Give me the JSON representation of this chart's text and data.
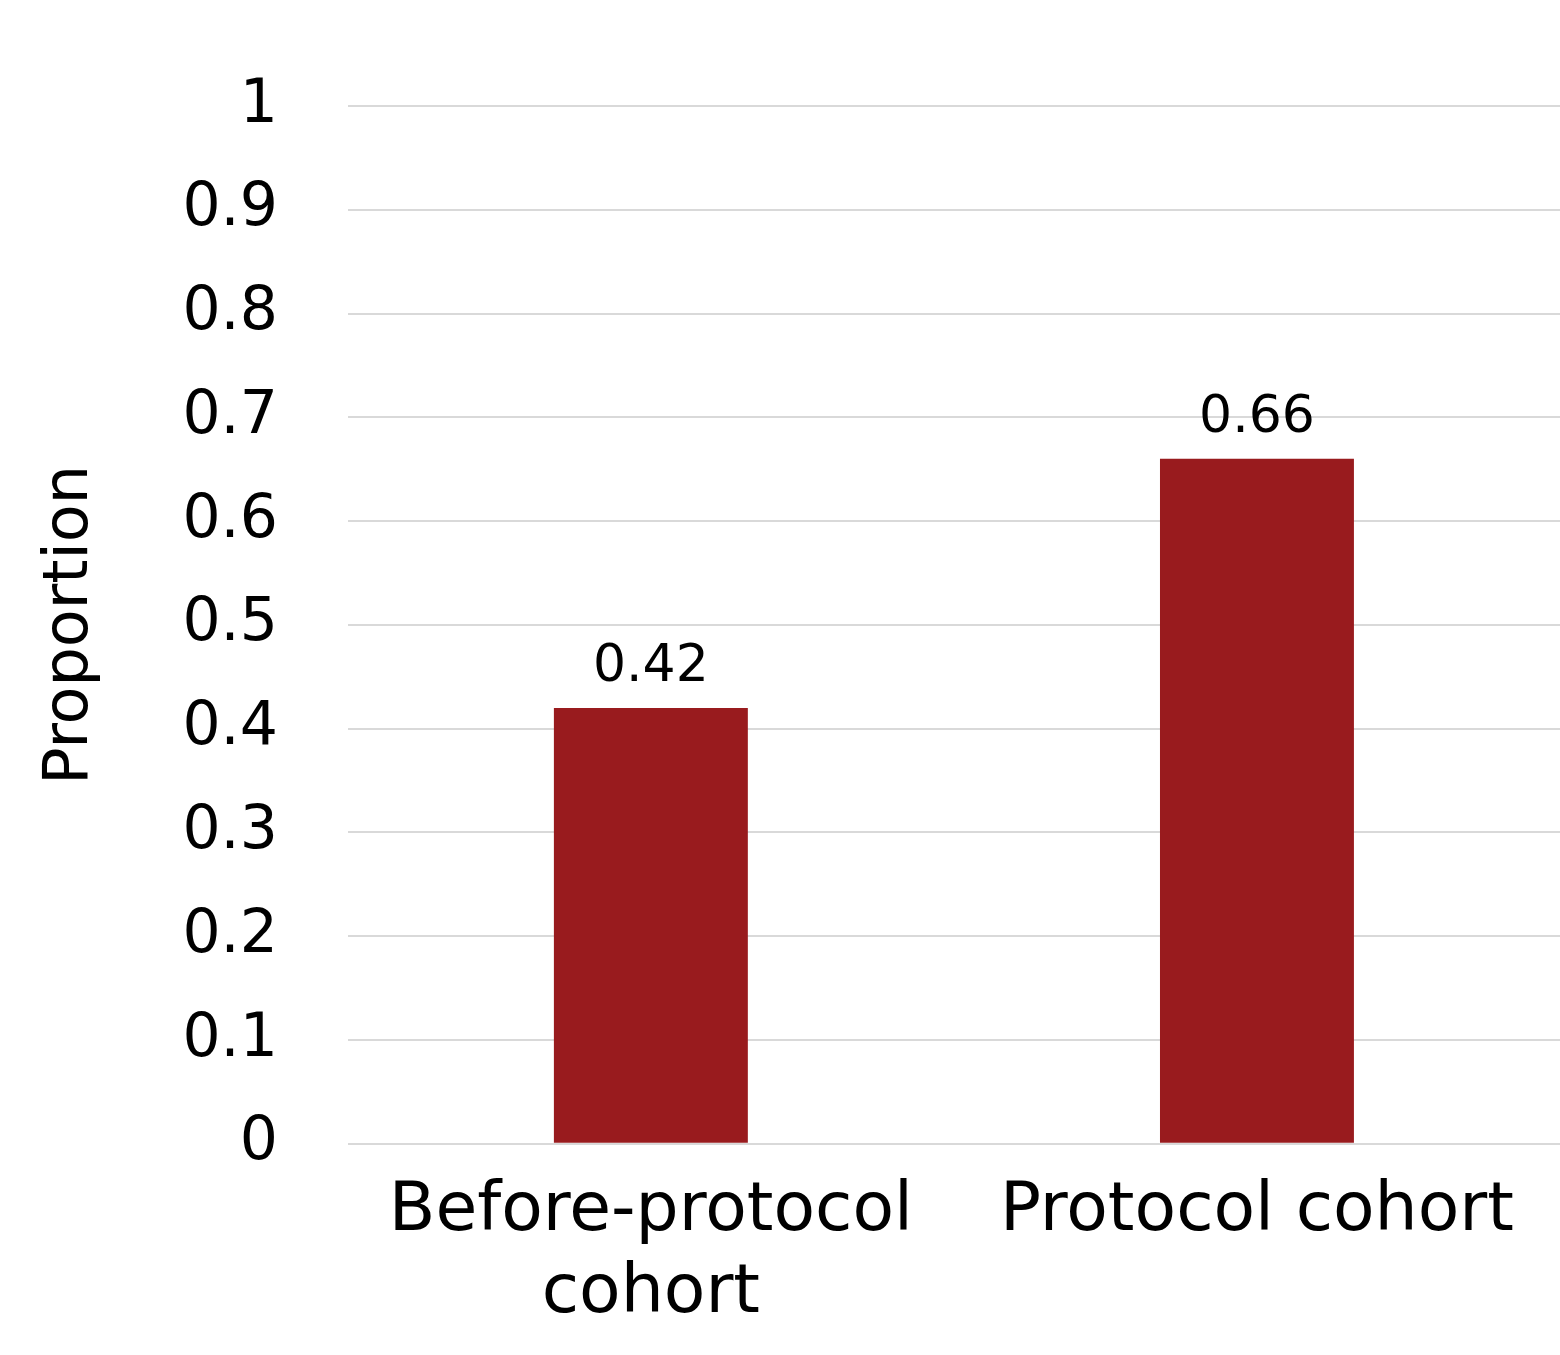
{
  "chart_data": {
    "type": "bar",
    "ylabel": "Proportion",
    "categories": [
      "Before-protocol cohort",
      "Protocol cohort"
    ],
    "values": [
      0.42,
      0.66
    ],
    "color": "#991b1e",
    "data_labels": true,
    "ylim": [
      0,
      1
    ],
    "yticks": [
      0,
      0.1,
      0.2,
      0.3,
      0.4,
      0.5,
      0.6,
      0.7,
      0.8,
      0.9,
      1
    ],
    "grid": "y",
    "legend": false
  }
}
